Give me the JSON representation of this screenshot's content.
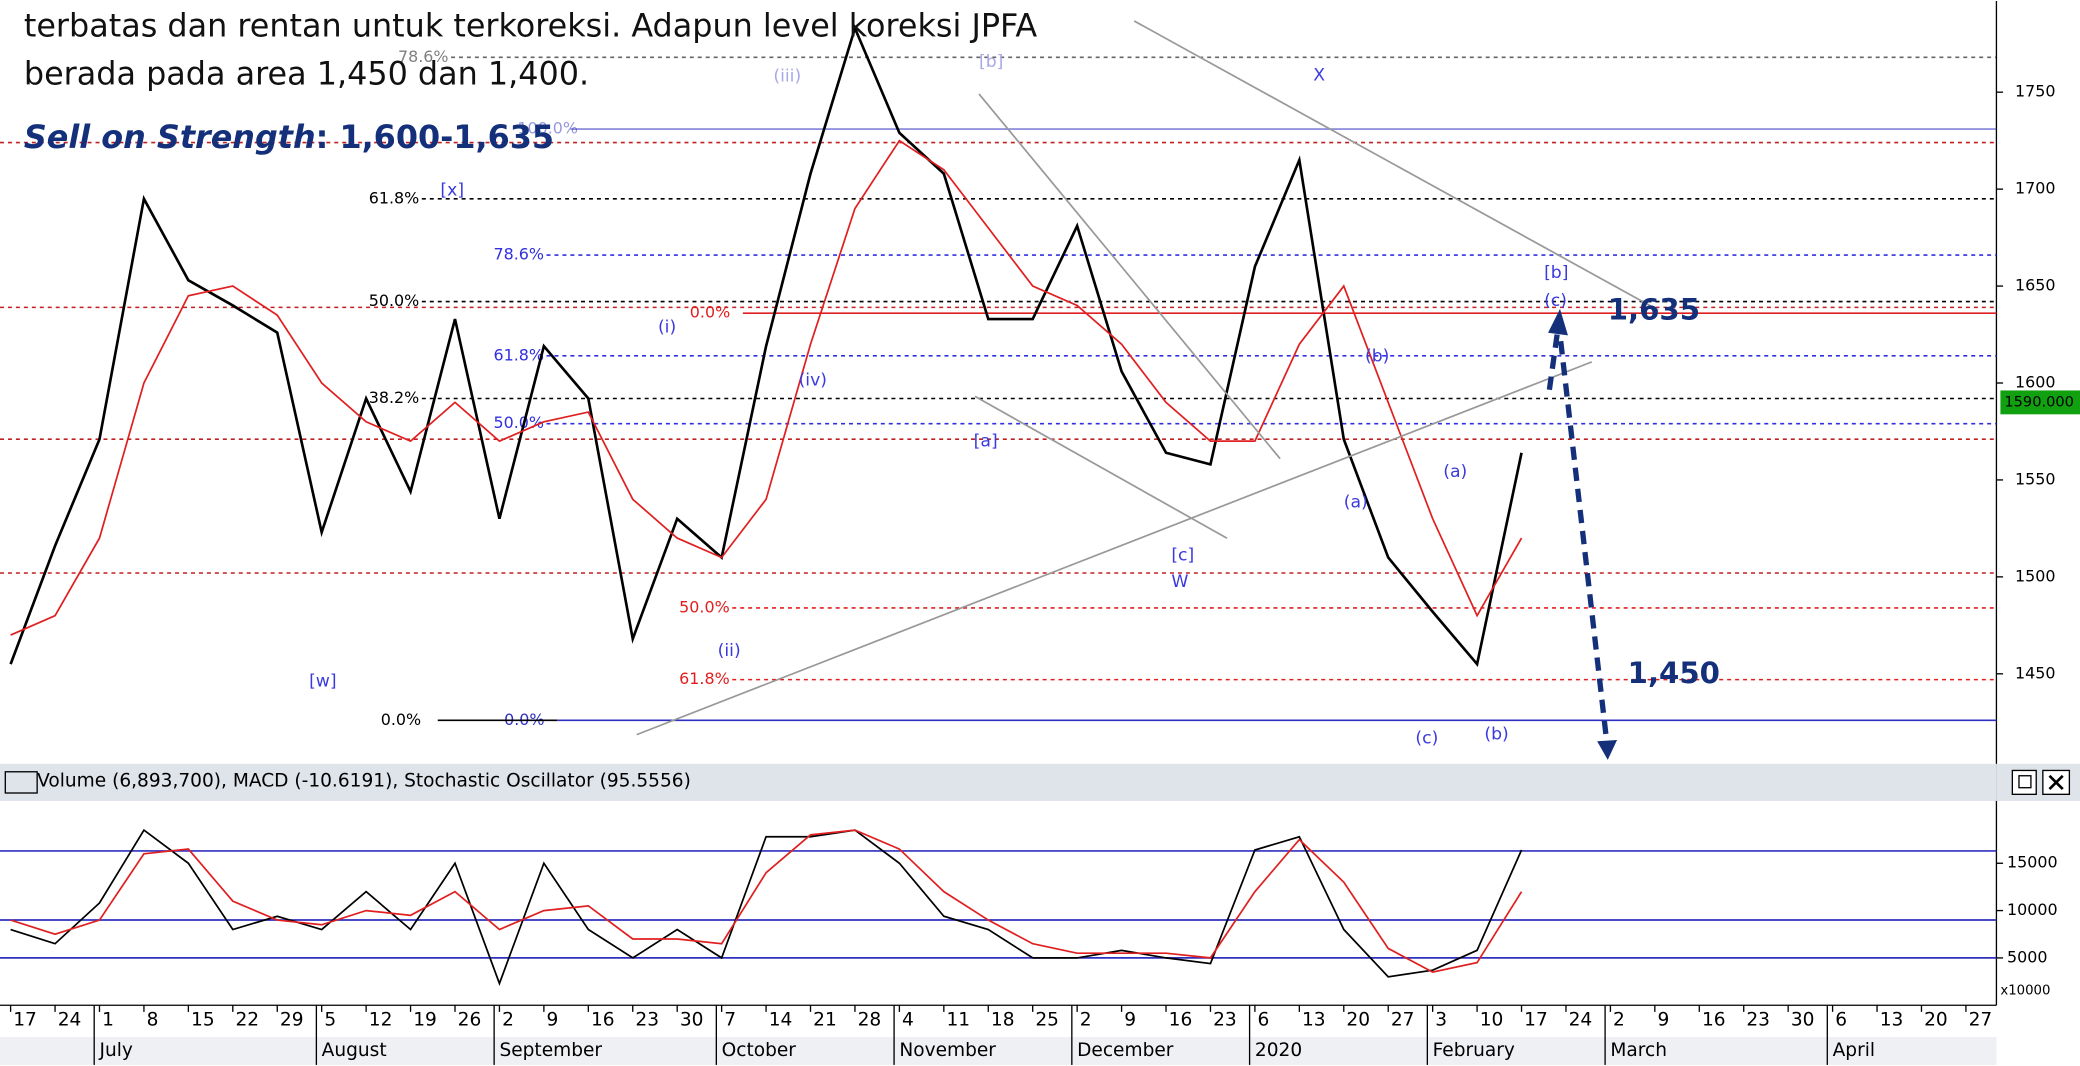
{
  "chart_data": {
    "type": "line",
    "text_lines": [
      "terbatas dan rentan untuk terkoreksi. Adapun level koreksi JPFA",
      "berada pada area 1,450 dan 1,400."
    ],
    "strategy": {
      "label": "Sell on Strength",
      "value": ": 1,600-1,635"
    },
    "categories": [
      "17",
      "24",
      "1",
      "8",
      "15",
      "22",
      "29",
      "5",
      "12",
      "19",
      "26",
      "2",
      "9",
      "16",
      "23",
      "30",
      "7",
      "14",
      "21",
      "28",
      "4",
      "11",
      "18",
      "25",
      "2",
      "9",
      "16",
      "23",
      "6",
      "13",
      "20",
      "27",
      "3",
      "10",
      "17",
      "24",
      "2",
      "9",
      "16",
      "23",
      "30",
      "6",
      "13",
      "20",
      "27"
    ],
    "months": [
      "July",
      "August",
      "September",
      "October",
      "November",
      "December",
      "2020",
      "February",
      "March",
      "April"
    ],
    "series": [
      {
        "name": "Close",
        "color": "#000000",
        "values": [
          1455,
          1516,
          1571,
          1695,
          1653,
          1640,
          1626,
          1523,
          1592,
          1544,
          1633,
          1530,
          1619,
          1592,
          1468,
          1530,
          1510,
          1619,
          1708,
          1783,
          1729,
          1708,
          1633,
          1633,
          1681,
          1606,
          1564,
          1558,
          1660,
          1715,
          1571,
          1510,
          1482,
          1455,
          1564,
          null,
          null,
          null,
          null,
          null,
          null,
          null,
          null,
          null,
          null
        ]
      },
      {
        "name": "MA",
        "color": "#e02020",
        "values": [
          1470,
          1480,
          1520,
          1600,
          1645,
          1650,
          1635,
          1600,
          1580,
          1570,
          1590,
          1570,
          1580,
          1585,
          1540,
          1520,
          1510,
          1540,
          1620,
          1690,
          1725,
          1710,
          1680,
          1650,
          1640,
          1620,
          1590,
          1570,
          1570,
          1620,
          1650,
          1590,
          1530,
          1480,
          1520,
          null,
          null,
          null,
          null,
          null,
          null,
          null,
          null,
          null,
          null
        ]
      }
    ],
    "ylim": [
      1407,
      1797
    ],
    "yticks": [
      1450,
      1500,
      1550,
      1600,
      1650,
      1700,
      1750
    ],
    "last_price": {
      "value": 1590,
      "label": "1590.000"
    },
    "levels": [
      {
        "value": 1768,
        "color": "#000000",
        "dashed": true,
        "label": "78.6%"
      },
      {
        "value": 1731,
        "color": "#3030c0",
        "dashed": false,
        "label": "100.0%"
      },
      {
        "value": 1724,
        "color": "#c02020",
        "dashed": true
      },
      {
        "value": 1695,
        "color": "#000000",
        "dashed": true,
        "label": "61.8%"
      },
      {
        "value": 1666,
        "color": "#3030e0",
        "dashed": true,
        "label": "78.6%"
      },
      {
        "value": 1642,
        "color": "#000000",
        "dashed": true,
        "label": "50.0%"
      },
      {
        "value": 1639,
        "color": "#c02020",
        "dashed": true
      },
      {
        "value": 1636,
        "color": "#e02020",
        "dashed": false,
        "label": "0.0%"
      },
      {
        "value": 1614,
        "color": "#3030e0",
        "dashed": true,
        "label": "61.8%"
      },
      {
        "value": 1592,
        "color": "#000000",
        "dashed": true,
        "label": "38.2%"
      },
      {
        "value": 1579,
        "color": "#3030e0",
        "dashed": true,
        "label": "50.0%"
      },
      {
        "value": 1571,
        "color": "#c02020",
        "dashed": true
      },
      {
        "value": 1502,
        "color": "#c02020",
        "dashed": true
      },
      {
        "value": 1484,
        "color": "#e02020",
        "dashed": true,
        "label": "50.0%"
      },
      {
        "value": 1447,
        "color": "#e02020",
        "dashed": true,
        "label": "61.8%"
      },
      {
        "value": 1426,
        "color": "#3030c0",
        "dashed": false,
        "label": "0.0%"
      },
      {
        "value": 1426,
        "color": "#000000",
        "dashed": false,
        "label": "0.0%"
      }
    ],
    "wave_labels": [
      "[x]",
      "(i)",
      "(iv)",
      "(ii)",
      "[w]",
      "(iii)",
      "[b]",
      "[a]",
      "[c]",
      "W",
      "X",
      "(b)",
      "(a)",
      "(a)",
      "(c)",
      "(b)",
      "[b]",
      "(c)"
    ],
    "annotations": [
      "1,635",
      "1,450"
    ],
    "indicator": {
      "title": "Volume (6,893,700), MACD (-10.6191), Stochastic Oscillator (95.5556)",
      "ylim": [
        0,
        21300
      ],
      "yticks": [
        5000,
        10000,
        15000
      ],
      "multiplier": "x10000",
      "lines": [
        9000,
        16300
      ],
      "series": [
        {
          "name": "%K",
          "color": "#000000",
          "values": [
            8000,
            6500,
            10800,
            18500,
            15000,
            8000,
            9400,
            8000,
            12000,
            8000,
            15000,
            2300,
            15000,
            8000,
            5000,
            8000,
            5000,
            17800,
            17800,
            18500,
            15000,
            9400,
            8000,
            5000,
            5000,
            5800,
            5000,
            4400,
            16400,
            17800,
            8000,
            3000,
            3700,
            5800,
            16400,
            null,
            null,
            null,
            null,
            null,
            null,
            null,
            null,
            null,
            null
          ]
        },
        {
          "name": "%D",
          "color": "#e02020",
          "values": [
            9000,
            7500,
            9000,
            16000,
            16500,
            11000,
            9000,
            8500,
            10000,
            9500,
            12000,
            8000,
            10000,
            10500,
            7000,
            7000,
            6500,
            14000,
            18000,
            18500,
            16500,
            12000,
            9000,
            6500,
            5500,
            5500,
            5500,
            5000,
            12000,
            17500,
            13000,
            6000,
            3500,
            4500,
            12000,
            null,
            null,
            null,
            null,
            null,
            null,
            null,
            null,
            null,
            null
          ]
        }
      ]
    }
  }
}
